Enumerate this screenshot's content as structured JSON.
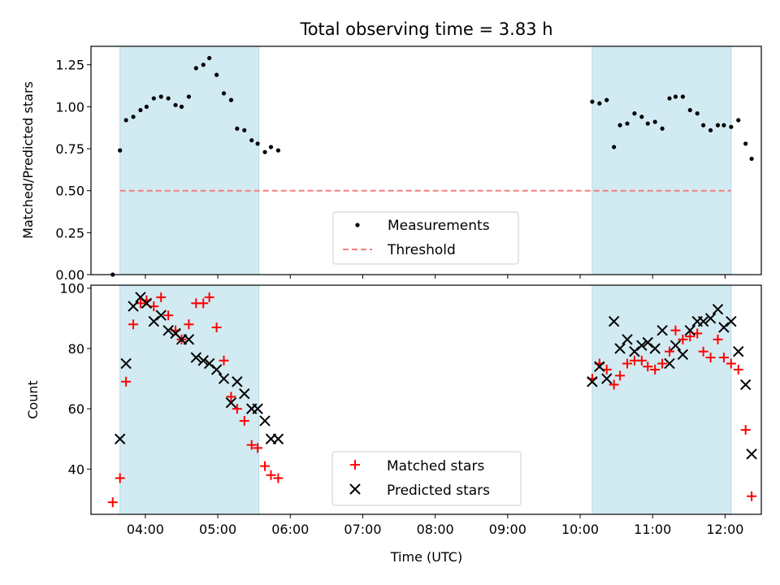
{
  "figure": {
    "title": "Total observing time = 3.83 h"
  },
  "chart_data": [
    {
      "type": "scatter",
      "ylabel": "Matched/Predicted stars",
      "ylim": [
        0,
        1.36
      ],
      "xlim": [
        "03:15",
        "12:30"
      ],
      "yticks": [
        0.0,
        0.25,
        0.5,
        0.75,
        1.0,
        1.25
      ],
      "ytick_labels": [
        "0.00",
        "0.25",
        "0.50",
        "0.75",
        "1.00",
        "1.25"
      ],
      "shaded_intervals": [
        [
          "03:39",
          "05:34"
        ],
        [
          "10:10",
          "12:05"
        ]
      ],
      "shade_color": "#add8e6",
      "legend_position": "lower-center",
      "series": [
        {
          "name": "Measurements",
          "color": "#000000",
          "marker": "dot",
          "points": [
            [
              "03:33",
              0.0
            ],
            [
              "03:39",
              0.74
            ],
            [
              "03:44",
              0.92
            ],
            [
              "03:50",
              0.94
            ],
            [
              "03:56",
              0.98
            ],
            [
              "04:01",
              1.0
            ],
            [
              "04:07",
              1.05
            ],
            [
              "04:13",
              1.06
            ],
            [
              "04:19",
              1.05
            ],
            [
              "04:25",
              1.01
            ],
            [
              "04:30",
              1.0
            ],
            [
              "04:36",
              1.06
            ],
            [
              "04:42",
              1.23
            ],
            [
              "04:48",
              1.25
            ],
            [
              "04:53",
              1.29
            ],
            [
              "04:59",
              1.19
            ],
            [
              "05:05",
              1.08
            ],
            [
              "05:11",
              1.04
            ],
            [
              "05:16",
              0.87
            ],
            [
              "05:22",
              0.86
            ],
            [
              "05:28",
              0.8
            ],
            [
              "05:33",
              0.78
            ],
            [
              "05:39",
              0.73
            ],
            [
              "05:44",
              0.76
            ],
            [
              "05:50",
              0.74
            ],
            [
              "10:10",
              1.03
            ],
            [
              "10:16",
              1.02
            ],
            [
              "10:22",
              1.04
            ],
            [
              "10:28",
              0.76
            ],
            [
              "10:33",
              0.89
            ],
            [
              "10:39",
              0.9
            ],
            [
              "10:45",
              0.96
            ],
            [
              "10:51",
              0.94
            ],
            [
              "10:56",
              0.9
            ],
            [
              "11:02",
              0.91
            ],
            [
              "11:08",
              0.87
            ],
            [
              "11:14",
              1.05
            ],
            [
              "11:19",
              1.06
            ],
            [
              "11:25",
              1.06
            ],
            [
              "11:31",
              0.98
            ],
            [
              "11:37",
              0.96
            ],
            [
              "11:42",
              0.89
            ],
            [
              "11:48",
              0.86
            ],
            [
              "11:54",
              0.89
            ],
            [
              "11:59",
              0.89
            ],
            [
              "12:05",
              0.88
            ],
            [
              "12:11",
              0.92
            ],
            [
              "12:17",
              0.78
            ],
            [
              "12:22",
              0.69
            ]
          ]
        },
        {
          "name": "Threshold",
          "color": "#f08080",
          "style": "dashed",
          "points": [
            [
              "03:39",
              0.5
            ],
            [
              "12:05",
              0.5
            ]
          ]
        }
      ]
    },
    {
      "type": "scatter",
      "xlabel": "Time (UTC)",
      "ylabel": "Count",
      "ylim": [
        25,
        101
      ],
      "xlim": [
        "03:15",
        "12:30"
      ],
      "yticks": [
        40,
        60,
        80,
        100
      ],
      "ytick_labels": [
        "40",
        "60",
        "80",
        "100"
      ],
      "xtick_labels": [
        "04:00",
        "05:00",
        "06:00",
        "07:00",
        "08:00",
        "09:00",
        "10:00",
        "11:00",
        "12:00"
      ],
      "shaded_intervals": [
        [
          "03:39",
          "05:34"
        ],
        [
          "10:10",
          "12:05"
        ]
      ],
      "shade_color": "#add8e6",
      "legend_position": "lower-center",
      "series": [
        {
          "name": "Matched stars",
          "color": "#ff0000",
          "marker": "plus",
          "points": [
            [
              "03:33",
              29
            ],
            [
              "03:39",
              37
            ],
            [
              "03:44",
              69
            ],
            [
              "03:50",
              88
            ],
            [
              "03:56",
              95
            ],
            [
              "04:01",
              96
            ],
            [
              "04:07",
              94
            ],
            [
              "04:13",
              97
            ],
            [
              "04:19",
              91
            ],
            [
              "04:25",
              86
            ],
            [
              "04:30",
              83
            ],
            [
              "04:36",
              88
            ],
            [
              "04:42",
              95
            ],
            [
              "04:48",
              95
            ],
            [
              "04:53",
              97
            ],
            [
              "04:59",
              87
            ],
            [
              "05:05",
              76
            ],
            [
              "05:11",
              64
            ],
            [
              "05:16",
              60
            ],
            [
              "05:22",
              56
            ],
            [
              "05:28",
              48
            ],
            [
              "05:33",
              47
            ],
            [
              "05:39",
              41
            ],
            [
              "05:44",
              38
            ],
            [
              "05:50",
              37
            ],
            [
              "10:10",
              70
            ],
            [
              "10:16",
              75
            ],
            [
              "10:22",
              73
            ],
            [
              "10:28",
              68
            ],
            [
              "10:33",
              71
            ],
            [
              "10:39",
              75
            ],
            [
              "10:45",
              76
            ],
            [
              "10:51",
              76
            ],
            [
              "10:56",
              74
            ],
            [
              "11:02",
              73
            ],
            [
              "11:08",
              75
            ],
            [
              "11:14",
              79
            ],
            [
              "11:19",
              86
            ],
            [
              "11:25",
              83
            ],
            [
              "11:31",
              84
            ],
            [
              "11:37",
              85
            ],
            [
              "11:42",
              79
            ],
            [
              "11:48",
              77
            ],
            [
              "11:54",
              83
            ],
            [
              "11:59",
              77
            ],
            [
              "12:05",
              75
            ],
            [
              "12:11",
              73
            ],
            [
              "12:17",
              53
            ],
            [
              "12:22",
              31
            ]
          ]
        },
        {
          "name": "Predicted stars",
          "color": "#000000",
          "marker": "x",
          "points": [
            [
              "03:39",
              50
            ],
            [
              "03:44",
              75
            ],
            [
              "03:50",
              94
            ],
            [
              "03:56",
              97
            ],
            [
              "04:01",
              95
            ],
            [
              "04:07",
              89
            ],
            [
              "04:13",
              91
            ],
            [
              "04:19",
              86
            ],
            [
              "04:25",
              85
            ],
            [
              "04:30",
              83
            ],
            [
              "04:36",
              83
            ],
            [
              "04:42",
              77
            ],
            [
              "04:48",
              76
            ],
            [
              "04:53",
              75
            ],
            [
              "04:59",
              73
            ],
            [
              "05:05",
              70
            ],
            [
              "05:11",
              62
            ],
            [
              "05:16",
              69
            ],
            [
              "05:22",
              65
            ],
            [
              "05:28",
              60
            ],
            [
              "05:33",
              60
            ],
            [
              "05:39",
              56
            ],
            [
              "05:44",
              50
            ],
            [
              "05:50",
              50
            ],
            [
              "10:10",
              69
            ],
            [
              "10:16",
              74
            ],
            [
              "10:22",
              70
            ],
            [
              "10:28",
              89
            ],
            [
              "10:33",
              80
            ],
            [
              "10:39",
              83
            ],
            [
              "10:45",
              79
            ],
            [
              "10:51",
              81
            ],
            [
              "10:56",
              82
            ],
            [
              "11:02",
              80
            ],
            [
              "11:08",
              86
            ],
            [
              "11:14",
              75
            ],
            [
              "11:19",
              81
            ],
            [
              "11:25",
              78
            ],
            [
              "11:31",
              86
            ],
            [
              "11:37",
              89
            ],
            [
              "11:42",
              89
            ],
            [
              "11:48",
              90
            ],
            [
              "11:54",
              93
            ],
            [
              "11:59",
              87
            ],
            [
              "12:05",
              89
            ],
            [
              "12:11",
              79
            ],
            [
              "12:17",
              68
            ],
            [
              "12:22",
              45
            ]
          ]
        }
      ]
    }
  ]
}
